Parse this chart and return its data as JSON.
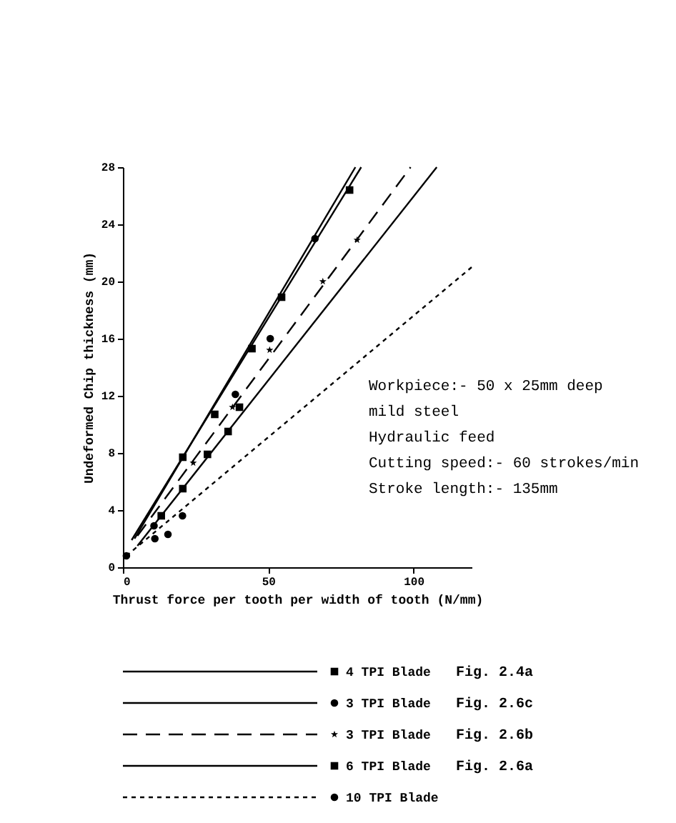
{
  "chart_data": {
    "type": "scatter",
    "xlabel": "Thrust force per tooth per width of tooth (N/mm)",
    "ylabel": "Undeformed Chip thickness (mm)",
    "xlim": [
      0,
      120
    ],
    "ylim": [
      0,
      28
    ],
    "xticks": [
      0,
      50,
      100
    ],
    "yticks": [
      0,
      4,
      8,
      12,
      16,
      20,
      24,
      28
    ],
    "grid": false,
    "legend": "bottom",
    "annotations": [
      "Workpiece:- 50 x 25mm deep\n            mild steel\nHydraulic feed\nCutting speed:- 60 strokes/min\nStroke length:- 135mm",
      "Fig. 2.4a",
      "Fig. 2.6c",
      "Fig. 2.6b",
      "Fig. 2.6a"
    ],
    "series": [
      {
        "name": "4 TPI Blade",
        "marker": "square",
        "color": "#000000",
        "x": [
          20.6,
          31.6,
          44.4,
          54.6,
          78
        ],
        "values": [
          7.7,
          10.7,
          15.3,
          18.9,
          26.4
        ]
      },
      {
        "name": "3 TPI Blade",
        "marker": "circle",
        "color": "#000000",
        "x": [
          10.7,
          38.7,
          50.7,
          66.1
        ],
        "values": [
          2.9,
          12.1,
          16.0,
          23.0
        ]
      },
      {
        "name": "3 TPI Blade",
        "marker": "star",
        "color": "#000000",
        "x": [
          24.2,
          37.7,
          50.5,
          68.8,
          80.6
        ],
        "values": [
          7.3,
          11.2,
          15.2,
          20.0,
          22.9
        ]
      },
      {
        "name": "6 TPI Blade",
        "marker": "square",
        "color": "#000000",
        "x": [
          13.2,
          20.6,
          29.1,
          36.2,
          40.1
        ],
        "values": [
          3.6,
          5.5,
          7.9,
          9.5,
          11.2
        ]
      },
      {
        "name": "10 TPI Blade",
        "marker": "circle",
        "color": "#000000",
        "x": [
          1.2,
          11,
          15.5,
          20.5
        ],
        "values": [
          0.8,
          2.0,
          2.3,
          3.6
        ]
      },
      {
        "type": "line",
        "line_style": "solid",
        "color": "#000000",
        "x": [
          3,
          82
        ],
        "values": [
          1.9,
          28
        ]
      },
      {
        "type": "line",
        "line_style": "solid",
        "color": "#000000",
        "x": [
          4,
          80
        ],
        "values": [
          2.0,
          28
        ]
      },
      {
        "type": "line",
        "line_style": "dashed",
        "color": "#000000",
        "x": [
          5,
          99
        ],
        "values": [
          2.2,
          28
        ]
      },
      {
        "type": "line",
        "line_style": "solid",
        "color": "#000000",
        "x": [
          5,
          108
        ],
        "values": [
          1.5,
          28
        ]
      },
      {
        "type": "line",
        "line_style": "dotted",
        "color": "#000000",
        "x": [
          1.2,
          120
        ],
        "values": [
          0.8,
          21
        ]
      }
    ]
  }
}
